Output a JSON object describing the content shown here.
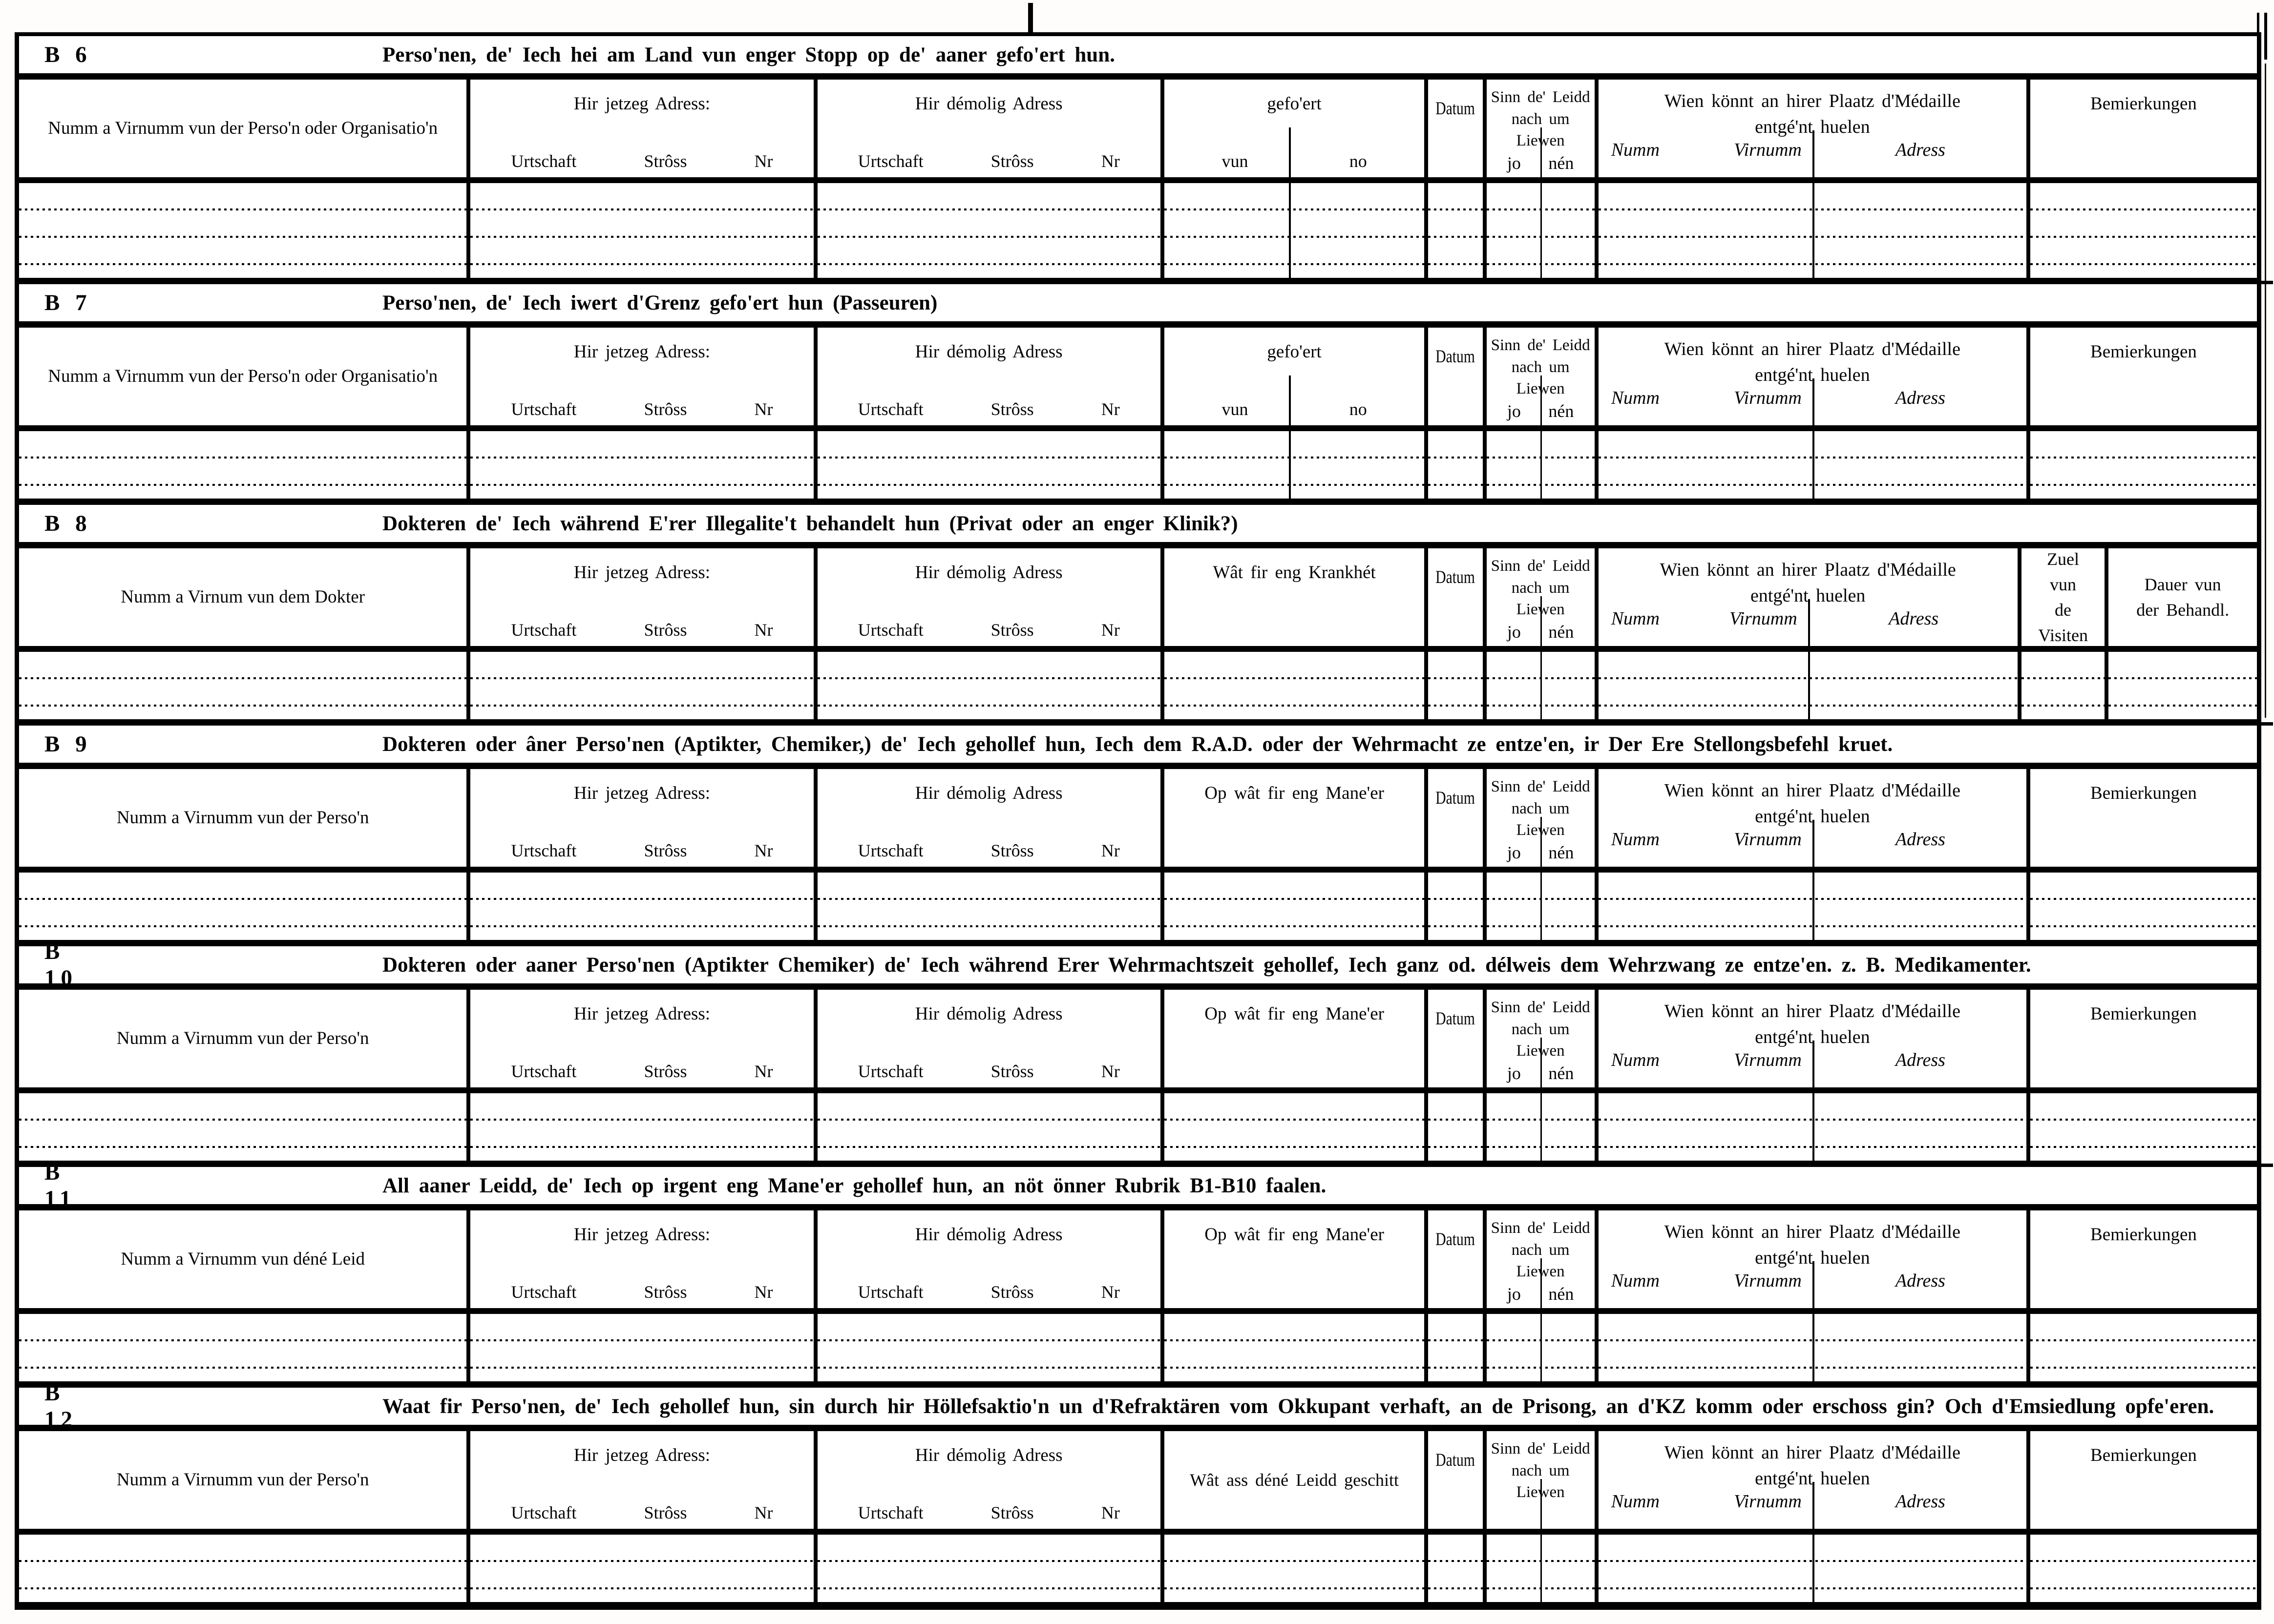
{
  "form": {
    "shared": {
      "jetzeg_adress": "Hir jetzeg Adress:",
      "demolig_adress": "Hir démolig Adress",
      "urtschaft": "Urtschaft",
      "stross": "Strôss",
      "nr": "Nr",
      "datum": "Datum",
      "sinn": "Sinn de' Leidd nach um Liewen",
      "jo": "jo",
      "nen": "nén",
      "wien": "Wien könnt an hirer Plaatz d'Médaille entgé'nt huelen",
      "numm": "Numm",
      "virnumm": "Virnumm",
      "adress": "Adress",
      "bemierkungen": "Bemierkungen"
    },
    "sections": [
      {
        "id": "B 6",
        "title": "Perso'nen, de' Iech hei am Land vun enger Stopp op de' aaner gefo'ert hun.",
        "name_col": "Numm a Virnumm vun der Perso'n oder Organisatio'n",
        "special": {
          "label": "gefo'ert",
          "sub": [
            "vun",
            "no"
          ]
        },
        "sinn_sub": true,
        "tail": "bem",
        "rows": 3
      },
      {
        "id": "B 7",
        "title": "Perso'nen, de' Iech iwert d'Grenz gefo'ert hun (Passeuren)",
        "name_col": "Numm a Virnumm vun der Perso'n oder Organisatio'n",
        "special": {
          "label": "gefo'ert",
          "sub": [
            "vun",
            "no"
          ]
        },
        "sinn_sub": true,
        "tail": "bem",
        "rows": 2
      },
      {
        "id": "B 8",
        "title": "Dokteren de' Iech während E'rer Illegalite't behandelt hun (Privat oder an enger Klinik?)",
        "name_col": "Numm a Virnum vun dem Dokter",
        "special": {
          "label": "Wât fir eng Krankhét"
        },
        "sinn_sub": true,
        "tail": "visits",
        "zuel": "Zuel vun de Visiten",
        "dauer": "Dauer vun der Behandl.",
        "rows": 2
      },
      {
        "id": "B 9",
        "title": "Dokteren oder âner Perso'nen (Aptikter, Chemiker,) de' Iech gehollef hun, Iech dem R.A.D. oder der Wehrmacht ze entze'en, ir Der Ere Stellongsbefehl kruet.",
        "name_col": "Numm a Virnumm vun der Perso'n",
        "special": {
          "label": "Op wât fir eng Mane'er"
        },
        "sinn_sub": true,
        "tail": "bem",
        "rows": 2
      },
      {
        "id": "B 10",
        "title": "Dokteren oder aaner Perso'nen (Aptikter Chemiker) de' Iech während Erer Wehrmachtszeit gehollef, Iech ganz od. délweis dem Wehrzwang ze entze'en. z. B. Medikamenter.",
        "name_col": "Numm a Virnumm vun der Perso'n",
        "special": {
          "label": "Op wât fir eng Mane'er"
        },
        "sinn_sub": true,
        "tail": "bem",
        "rows": 2
      },
      {
        "id": "B 11",
        "title": "All aaner Leidd, de' Iech op irgent eng Mane'er gehollef hun, an nöt önner Rubrik B1-B10 faalen.",
        "name_col": "Numm a Virnumm vun déné Leid",
        "special": {
          "label": "Op wât fir eng Mane'er"
        },
        "sinn_sub": true,
        "tail": "bem",
        "rows": 2
      },
      {
        "id": "B 12",
        "title": "Waat fir Perso'nen, de' Iech gehollef hun, sin durch hir Höllefsaktio'n un d'Refraktären vom Okkupant verhaft, an de Prisong, an d'KZ komm oder erschoss gin? Och d'Emsiedlung opfe'eren.",
        "name_col": "Numm a Virnumm vun der Perso'n",
        "special": {
          "label": "Wât ass déné Leidd geschitt",
          "middle": true
        },
        "sinn_sub": false,
        "tail": "bem",
        "rows": 2
      }
    ]
  }
}
